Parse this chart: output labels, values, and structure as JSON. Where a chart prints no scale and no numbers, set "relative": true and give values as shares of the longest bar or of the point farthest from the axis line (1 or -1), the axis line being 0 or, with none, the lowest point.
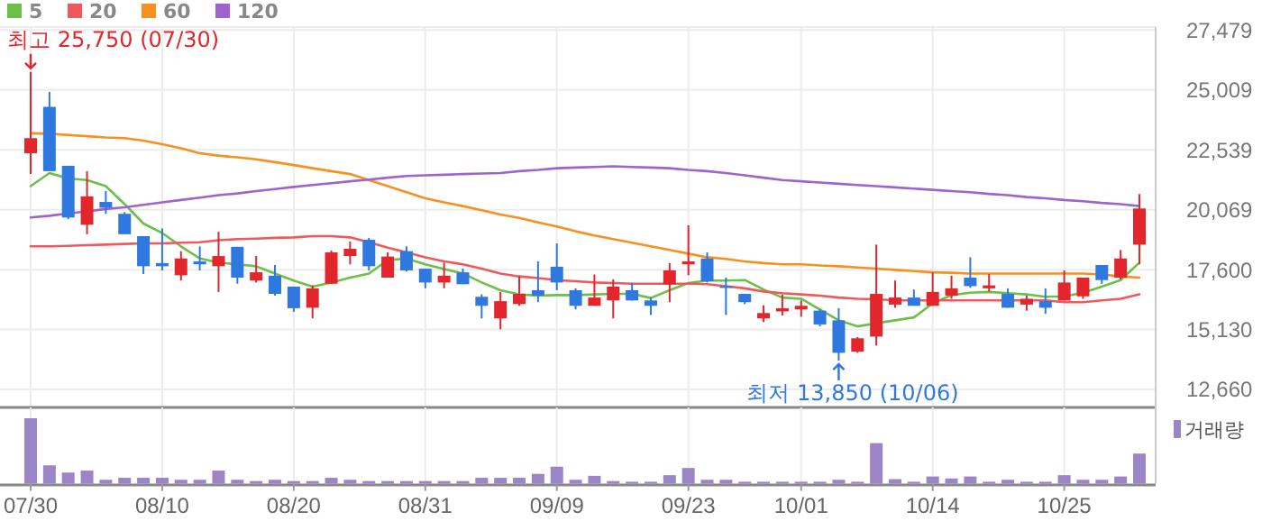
{
  "chart_data": [
    {
      "type": "candlestick",
      "categories": [
        "07/30",
        null,
        null,
        null,
        null,
        null,
        null,
        "08/10",
        null,
        null,
        null,
        null,
        null,
        null,
        "08/20",
        null,
        null,
        null,
        null,
        null,
        null,
        "08/31",
        null,
        null,
        null,
        null,
        null,
        null,
        "09/09",
        null,
        null,
        null,
        null,
        null,
        null,
        "09/23",
        null,
        null,
        null,
        null,
        null,
        "10/01",
        null,
        null,
        null,
        null,
        null,
        null,
        "10/14",
        null,
        null,
        null,
        null,
        null,
        null,
        "10/25",
        null,
        null,
        null,
        null
      ],
      "ohlc": [
        [
          22400,
          25750,
          21540,
          23020
        ],
        [
          24310,
          24930,
          21660,
          21660
        ],
        [
          21880,
          21880,
          19680,
          19750
        ],
        [
          19450,
          21660,
          19060,
          20620
        ],
        [
          20390,
          20840,
          19900,
          20150
        ],
        [
          19900,
          19970,
          19060,
          19060
        ],
        [
          18980,
          18980,
          17420,
          17740
        ],
        [
          17870,
          19300,
          17570,
          17740
        ],
        [
          17370,
          18360,
          17150,
          18060
        ],
        [
          17940,
          18560,
          17570,
          17820
        ],
        [
          17740,
          19160,
          16680,
          18160
        ],
        [
          18540,
          18540,
          17020,
          17270
        ],
        [
          17150,
          18160,
          17070,
          17490
        ],
        [
          17350,
          17790,
          16530,
          16600
        ],
        [
          16900,
          16900,
          15860,
          16010
        ],
        [
          16030,
          16950,
          15590,
          16830
        ],
        [
          17020,
          18390,
          17020,
          18310
        ],
        [
          18160,
          18760,
          17820,
          18460
        ],
        [
          18830,
          18910,
          17570,
          17740
        ],
        [
          17270,
          18310,
          17270,
          18140
        ],
        [
          18360,
          18560,
          17520,
          17570
        ],
        [
          17640,
          17640,
          16830,
          17070
        ],
        [
          17070,
          17890,
          16830,
          17350
        ],
        [
          17490,
          17640,
          17000,
          17000
        ],
        [
          16480,
          16580,
          15590,
          16110
        ],
        [
          15590,
          16680,
          15140,
          16300
        ],
        [
          16180,
          17320,
          16110,
          16600
        ],
        [
          16750,
          17940,
          16260,
          16530
        ],
        [
          17720,
          18680,
          16750,
          17070
        ],
        [
          16750,
          16830,
          15960,
          16110
        ],
        [
          16110,
          17400,
          16110,
          16450
        ],
        [
          16330,
          17200,
          15590,
          16900
        ],
        [
          16750,
          17050,
          16330,
          16330
        ],
        [
          16330,
          16450,
          15730,
          16110
        ],
        [
          17000,
          17870,
          16260,
          17570
        ],
        [
          17820,
          19430,
          17370,
          17940
        ],
        [
          18060,
          18310,
          17070,
          17120
        ],
        [
          16920,
          17270,
          15730,
          16870
        ],
        [
          16600,
          16600,
          16180,
          16260
        ],
        [
          15590,
          16130,
          15440,
          15810
        ],
        [
          15880,
          16580,
          15710,
          16010
        ],
        [
          15960,
          16330,
          15660,
          16110
        ],
        [
          15910,
          15960,
          15260,
          15340
        ],
        [
          15510,
          16010,
          13850,
          14170
        ],
        [
          14220,
          14820,
          14170,
          14770
        ],
        [
          14840,
          18630,
          14470,
          16600
        ],
        [
          16160,
          17150,
          16030,
          16450
        ],
        [
          16450,
          16780,
          16110,
          16110
        ],
        [
          16110,
          17490,
          16110,
          16680
        ],
        [
          16530,
          17350,
          16400,
          16830
        ],
        [
          17270,
          18110,
          16850,
          16920
        ],
        [
          16830,
          17420,
          16700,
          16950
        ],
        [
          16600,
          16830,
          16030,
          16030
        ],
        [
          16160,
          16530,
          15910,
          16400
        ],
        [
          16300,
          16830,
          15780,
          16030
        ],
        [
          16330,
          17570,
          16330,
          17070
        ],
        [
          16500,
          17270,
          16400,
          17270
        ],
        [
          17790,
          17790,
          17020,
          17170
        ],
        [
          17270,
          18410,
          17200,
          18060
        ],
        [
          18630,
          20720,
          17820,
          20120
        ]
      ],
      "colors": [
        "#e3262b",
        "#2f78e0",
        "#2f78e0",
        "#e3262b",
        "#2f78e0",
        "#2f78e0",
        "#2f78e0",
        "#2f78e0",
        "#e3262b",
        "#2f78e0",
        "#e3262b",
        "#2f78e0",
        "#e3262b",
        "#2f78e0",
        "#2f78e0",
        "#e3262b",
        "#e3262b",
        "#e3262b",
        "#2f78e0",
        "#e3262b",
        "#2f78e0",
        "#2f78e0",
        "#e3262b",
        "#2f78e0",
        "#2f78e0",
        "#e3262b",
        "#e3262b",
        "#2f78e0",
        "#2f78e0",
        "#2f78e0",
        "#e3262b",
        "#e3262b",
        "#2f78e0",
        "#2f78e0",
        "#e3262b",
        "#e3262b",
        "#2f78e0",
        "#2f78e0",
        "#2f78e0",
        "#e3262b",
        "#e3262b",
        "#e3262b",
        "#2f78e0",
        "#2f78e0",
        "#e3262b",
        "#e3262b",
        "#e3262b",
        "#2f78e0",
        "#e3262b",
        "#e3262b",
        "#2f78e0",
        "#e3262b",
        "#2f78e0",
        "#e3262b",
        "#2f78e0",
        "#e3262b",
        "#e3262b",
        "#2f78e0",
        "#e3262b",
        "#e3262b"
      ],
      "series": [
        {
          "type": "line",
          "name": "5",
          "color": "#6cc04a",
          "values": [
            21040,
            21580,
            21360,
            21290,
            21040,
            20300,
            19500,
            19110,
            18560,
            18060,
            17890,
            17820,
            17740,
            17440,
            17150,
            16900,
            17070,
            17270,
            17440,
            17990,
            18060,
            17820,
            17620,
            17440,
            17070,
            16750,
            16580,
            16530,
            16550,
            16550,
            16580,
            16600,
            16600,
            16430,
            16750,
            17050,
            17150,
            17150,
            17170,
            16780,
            16450,
            16400,
            15960,
            15510,
            15260,
            15390,
            15510,
            15630,
            16210,
            16550,
            16650,
            16680,
            16630,
            16580,
            16480,
            16500,
            16650,
            16900,
            17170,
            17890
          ]
        },
        {
          "type": "line",
          "name": "20",
          "color": "#f0595b",
          "values": [
            18560,
            18560,
            18580,
            18610,
            18630,
            18660,
            18680,
            18680,
            18710,
            18730,
            18810,
            18860,
            18880,
            18910,
            18930,
            18980,
            18980,
            18930,
            18730,
            18510,
            18310,
            18110,
            17940,
            17820,
            17640,
            17440,
            17320,
            17250,
            17170,
            17120,
            17070,
            17050,
            17020,
            17020,
            17020,
            17020,
            17000,
            16920,
            16830,
            16700,
            16630,
            16580,
            16530,
            16450,
            16400,
            16380,
            16330,
            16330,
            16330,
            16330,
            16330,
            16330,
            16330,
            16330,
            16330,
            16260,
            16260,
            16330,
            16400,
            16580
          ]
        },
        {
          "type": "line",
          "name": "60",
          "color": "#f7901e",
          "values": [
            23220,
            23200,
            23150,
            23100,
            23050,
            23020,
            22920,
            22770,
            22600,
            22400,
            22300,
            22230,
            22150,
            22030,
            21910,
            21780,
            21660,
            21540,
            21290,
            21040,
            20790,
            20540,
            20370,
            20220,
            20050,
            19870,
            19730,
            19550,
            19380,
            19180,
            19010,
            18860,
            18710,
            18560,
            18410,
            18260,
            18110,
            18040,
            17940,
            17870,
            17820,
            17820,
            17770,
            17740,
            17690,
            17640,
            17590,
            17540,
            17490,
            17470,
            17440,
            17440,
            17440,
            17440,
            17440,
            17440,
            17440,
            17400,
            17320,
            17270
          ]
        },
        {
          "type": "line",
          "name": "120",
          "color": "#a062cc",
          "values": [
            19750,
            19820,
            19920,
            20000,
            20100,
            20170,
            20270,
            20370,
            20470,
            20570,
            20670,
            20740,
            20840,
            20920,
            21010,
            21090,
            21160,
            21240,
            21310,
            21390,
            21460,
            21490,
            21510,
            21540,
            21560,
            21580,
            21660,
            21710,
            21780,
            21810,
            21830,
            21860,
            21830,
            21810,
            21780,
            21710,
            21660,
            21580,
            21490,
            21390,
            21290,
            21240,
            21190,
            21140,
            21090,
            21040,
            20990,
            20940,
            20890,
            20840,
            20790,
            20720,
            20670,
            20590,
            20540,
            20470,
            20420,
            20350,
            20300,
            20220
          ]
        }
      ],
      "ylim": [
        11920,
        27600
      ],
      "yticks": [
        {
          "value": 12660,
          "label": "12,660"
        },
        {
          "value": 15130,
          "label": "15,130"
        },
        {
          "value": 17600,
          "label": "17,600"
        },
        {
          "value": 20069,
          "label": "20,069"
        },
        {
          "value": 22539,
          "label": "22,539"
        },
        {
          "value": 25009,
          "label": "25,009"
        },
        {
          "value": 27479,
          "label": "27,479"
        }
      ],
      "annotations": [
        {
          "text": "최고 25,750 (07/30)",
          "x": "07/30",
          "y": 25750
        },
        {
          "text": "최저 13,850 (10/06)",
          "y": 13850
        }
      ],
      "grid": true,
      "legend": "top left",
      "tick_labels": "y"
    },
    {
      "type": "bar",
      "relative": true,
      "categories": [
        "07/30",
        null,
        null,
        null,
        null,
        null,
        null,
        "08/10",
        null,
        null,
        null,
        null,
        null,
        null,
        "08/20",
        null,
        null,
        null,
        null,
        null,
        null,
        "08/31",
        null,
        null,
        null,
        null,
        null,
        null,
        "09/09",
        null,
        null,
        null,
        null,
        null,
        null,
        "09/23",
        null,
        null,
        null,
        null,
        null,
        "10/01",
        null,
        null,
        null,
        null,
        null,
        null,
        "10/14",
        null,
        null,
        null,
        null,
        null,
        null,
        "10/25",
        null,
        null,
        null,
        null
      ],
      "series": [
        {
          "name": "거래량",
          "color": "#9b85c6",
          "values": [
            1,
            0.28,
            0.17,
            0.2,
            0.06,
            0.09,
            0.09,
            0.09,
            0.06,
            0.06,
            0.2,
            0.06,
            0.04,
            0.06,
            0.04,
            0.04,
            0.09,
            0.06,
            0.04,
            0.04,
            0.04,
            0.04,
            0.04,
            0.04,
            0.09,
            0.09,
            0.09,
            0.15,
            0.26,
            0.06,
            0.12,
            0.04,
            0.03,
            0.03,
            0.13,
            0.24,
            0.06,
            0.06,
            0.03,
            0.03,
            0.03,
            0.03,
            0.03,
            0.06,
            0.03,
            0.62,
            0.07,
            0.03,
            0.11,
            0.08,
            0.11,
            0.03,
            0.06,
            0.03,
            0.03,
            0.13,
            0.06,
            0.06,
            0.11,
            0.46
          ]
        }
      ],
      "grid": "x",
      "legend": "top right",
      "tick_labels": "x"
    }
  ]
}
